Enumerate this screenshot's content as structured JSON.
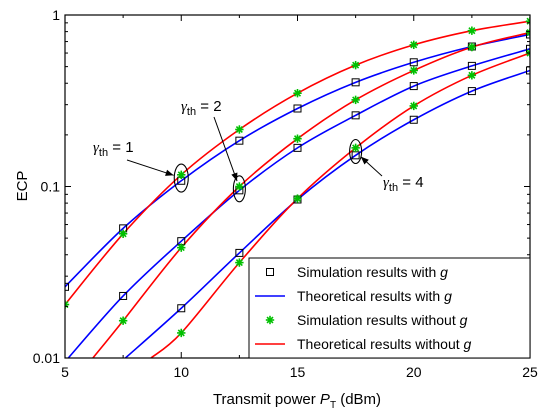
{
  "chart_data": {
    "type": "line",
    "xlabel": "Transmit power",
    "xlabel_sym": "P",
    "xlabel_sub": "T",
    "xlabel_unit": "(dBm)",
    "ylabel": "ECP",
    "xlim": [
      5,
      25
    ],
    "ylim": [
      0.01,
      1
    ],
    "yscale": "log",
    "xticks": [
      5,
      10,
      15,
      20,
      25
    ],
    "xtick_labels": [
      "5",
      "10",
      "15",
      "20",
      "25"
    ],
    "yticks": [
      0.01,
      0.1,
      1
    ],
    "ytick_labels": [
      "0.01",
      "0.1",
      "1"
    ],
    "grid": false,
    "legend_position": "bottom-right",
    "legend": [
      {
        "text": "Simulation results with ",
        "italic": "g",
        "kind": "square",
        "color": "#000000"
      },
      {
        "text": "Theoretical results with ",
        "italic": "g",
        "kind": "line",
        "color": "#0000ff"
      },
      {
        "text": "Simulation results without ",
        "italic": "g",
        "kind": "star",
        "color": "#00c000"
      },
      {
        "text": "Theoretical results without ",
        "italic": "g",
        "kind": "line",
        "color": "#ff0000"
      }
    ],
    "x_markers": [
      5,
      7.5,
      10,
      12.5,
      15,
      17.5,
      20,
      22.5,
      25
    ],
    "series": [
      {
        "group": "1",
        "with_g": true,
        "color": "#0000ff",
        "x": [
          5,
          7.5,
          10,
          12.5,
          15,
          17.5,
          20,
          22.5,
          25
        ],
        "y": [
          0.026,
          0.057,
          0.108,
          0.185,
          0.285,
          0.405,
          0.53,
          0.655,
          0.77
        ]
      },
      {
        "group": "1",
        "with_g": false,
        "color": "#ff0000",
        "x": [
          5,
          7.5,
          10,
          12.5,
          15,
          17.5,
          20,
          22.5,
          25
        ],
        "y": [
          0.0205,
          0.053,
          0.117,
          0.215,
          0.35,
          0.51,
          0.67,
          0.81,
          0.92
        ]
      },
      {
        "group": "2",
        "with_g": true,
        "color": "#0000ff",
        "x": [
          5,
          7.5,
          10,
          12.5,
          15,
          17.5,
          20,
          22.5,
          25
        ],
        "y": [
          0.0095,
          0.023,
          0.048,
          0.095,
          0.168,
          0.26,
          0.385,
          0.505,
          0.635
        ]
      },
      {
        "group": "2",
        "with_g": false,
        "color": "#ff0000",
        "x": [
          6.2,
          7.5,
          10,
          12.5,
          15,
          17.5,
          20,
          22.5,
          25
        ],
        "y": [
          0.01,
          0.0165,
          0.044,
          0.1,
          0.19,
          0.32,
          0.475,
          0.65,
          0.79
        ]
      },
      {
        "group": "4",
        "with_g": true,
        "color": "#0000ff",
        "x": [
          7.6,
          10,
          12.5,
          15,
          17.5,
          20,
          22.5,
          25
        ],
        "y": [
          0.01,
          0.0195,
          0.041,
          0.084,
          0.152,
          0.245,
          0.36,
          0.475
        ]
      },
      {
        "group": "4",
        "with_g": false,
        "color": "#ff0000",
        "x": [
          8.7,
          10,
          12.5,
          15,
          17.5,
          20,
          22.5,
          25
        ],
        "y": [
          0.01,
          0.014,
          0.036,
          0.085,
          0.168,
          0.295,
          0.445,
          0.6
        ]
      }
    ],
    "annotations": [
      {
        "sym": "γ",
        "sub": "th",
        "text": " = 1",
        "ellipse": {
          "x": 10,
          "y": 0.112
        }
      },
      {
        "sym": "γ",
        "sub": "th",
        "text": " = 2",
        "ellipse": {
          "x": 12.5,
          "y": 0.097
        }
      },
      {
        "sym": "γ",
        "sub": "th",
        "text": " = 4",
        "ellipse": {
          "x": 17.5,
          "y": 0.16
        }
      }
    ]
  }
}
